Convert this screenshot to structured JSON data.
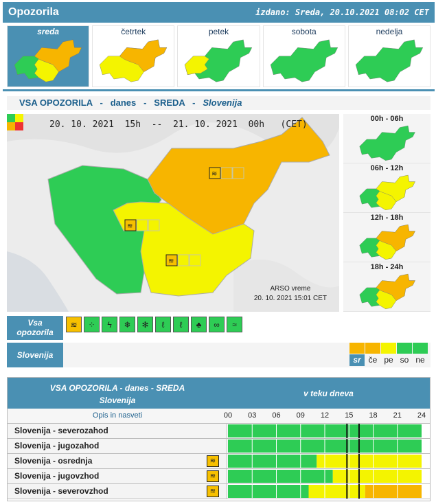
{
  "header": {
    "title": "Opozorila",
    "issued": "izdano: Sreda, 20.10.2021 08:02 CET"
  },
  "days": [
    {
      "label": "sreda",
      "active": true,
      "map": "wed"
    },
    {
      "label": "četrtek",
      "active": false,
      "map": "thu"
    },
    {
      "label": "petek",
      "active": false,
      "map": "fri"
    },
    {
      "label": "sobota",
      "active": false,
      "map": "green"
    },
    {
      "label": "nedelja",
      "active": false,
      "map": "green"
    }
  ],
  "section": {
    "all_warnings": "VSA OPOZORILA",
    "sep": "-",
    "today": "danes",
    "day": "SREDA",
    "region": "Slovenija"
  },
  "main_map": {
    "validity": "20. 10. 2021  15h  --  21. 10. 2021  00h   (CET)",
    "credit": "ARSO vreme",
    "credit_time": "20. 10. 2021  15:01 CET"
  },
  "periods": [
    {
      "label": "00h - 06h",
      "map": "green"
    },
    {
      "label": "06h - 12h",
      "map": "p2"
    },
    {
      "label": "12h - 18h",
      "map": "wed"
    },
    {
      "label": "18h - 24h",
      "map": "wed"
    }
  ],
  "types": {
    "label_line1": "Vsa",
    "label_line2": "opozorila",
    "icons": [
      "wind-icon",
      "rain-icon",
      "thunderstorm-icon",
      "snow-icon",
      "snow-ice-icon",
      "low-temperature-icon",
      "high-temperature-icon",
      "forest-fire-icon",
      "fog-icon",
      "coastal-event-icon"
    ],
    "active_index": 0
  },
  "region_row": {
    "label": "Slovenija",
    "days": [
      {
        "abbr": "sr",
        "color": "#f7b500",
        "selected": true
      },
      {
        "abbr": "če",
        "color": "#f7b500",
        "selected": false
      },
      {
        "abbr": "pe",
        "color": "#f4f400",
        "selected": false
      },
      {
        "abbr": "so",
        "color": "#2ecc55",
        "selected": false
      },
      {
        "abbr": "ne",
        "color": "#2ecc55",
        "selected": false
      }
    ]
  },
  "table": {
    "title1": "VSA OPOZORILA - danes - SREDA",
    "title2": "Slovenija",
    "right_title": "v teku dneva",
    "col_label": "Opis in nasveti",
    "hours": [
      "00",
      "03",
      "06",
      "09",
      "12",
      "15",
      "18",
      "21",
      "24"
    ],
    "now_hour": 14.75,
    "valid_hour": 16.25,
    "rows": [
      {
        "name": "Slovenija - severozahod",
        "icon": false,
        "segments": [
          [
            0,
            24,
            "green"
          ]
        ]
      },
      {
        "name": "Slovenija - jugozahod",
        "icon": false,
        "segments": [
          [
            0,
            24,
            "green"
          ]
        ]
      },
      {
        "name": "Slovenija - osrednja",
        "icon": true,
        "segments": [
          [
            0,
            11,
            "green"
          ],
          [
            11,
            24,
            "yellow"
          ]
        ]
      },
      {
        "name": "Slovenija - jugovzhod",
        "icon": true,
        "segments": [
          [
            0,
            13,
            "green"
          ],
          [
            13,
            24,
            "yellow"
          ]
        ]
      },
      {
        "name": "Slovenija - severovzhod",
        "icon": true,
        "segments": [
          [
            0,
            10,
            "green"
          ],
          [
            10,
            17,
            "yellow"
          ],
          [
            17,
            24,
            "orange"
          ]
        ]
      }
    ]
  },
  "colors": {
    "accent": "#4a90b3",
    "green": "#2ecc55",
    "yellow": "#f4f400",
    "orange": "#f7b500"
  }
}
